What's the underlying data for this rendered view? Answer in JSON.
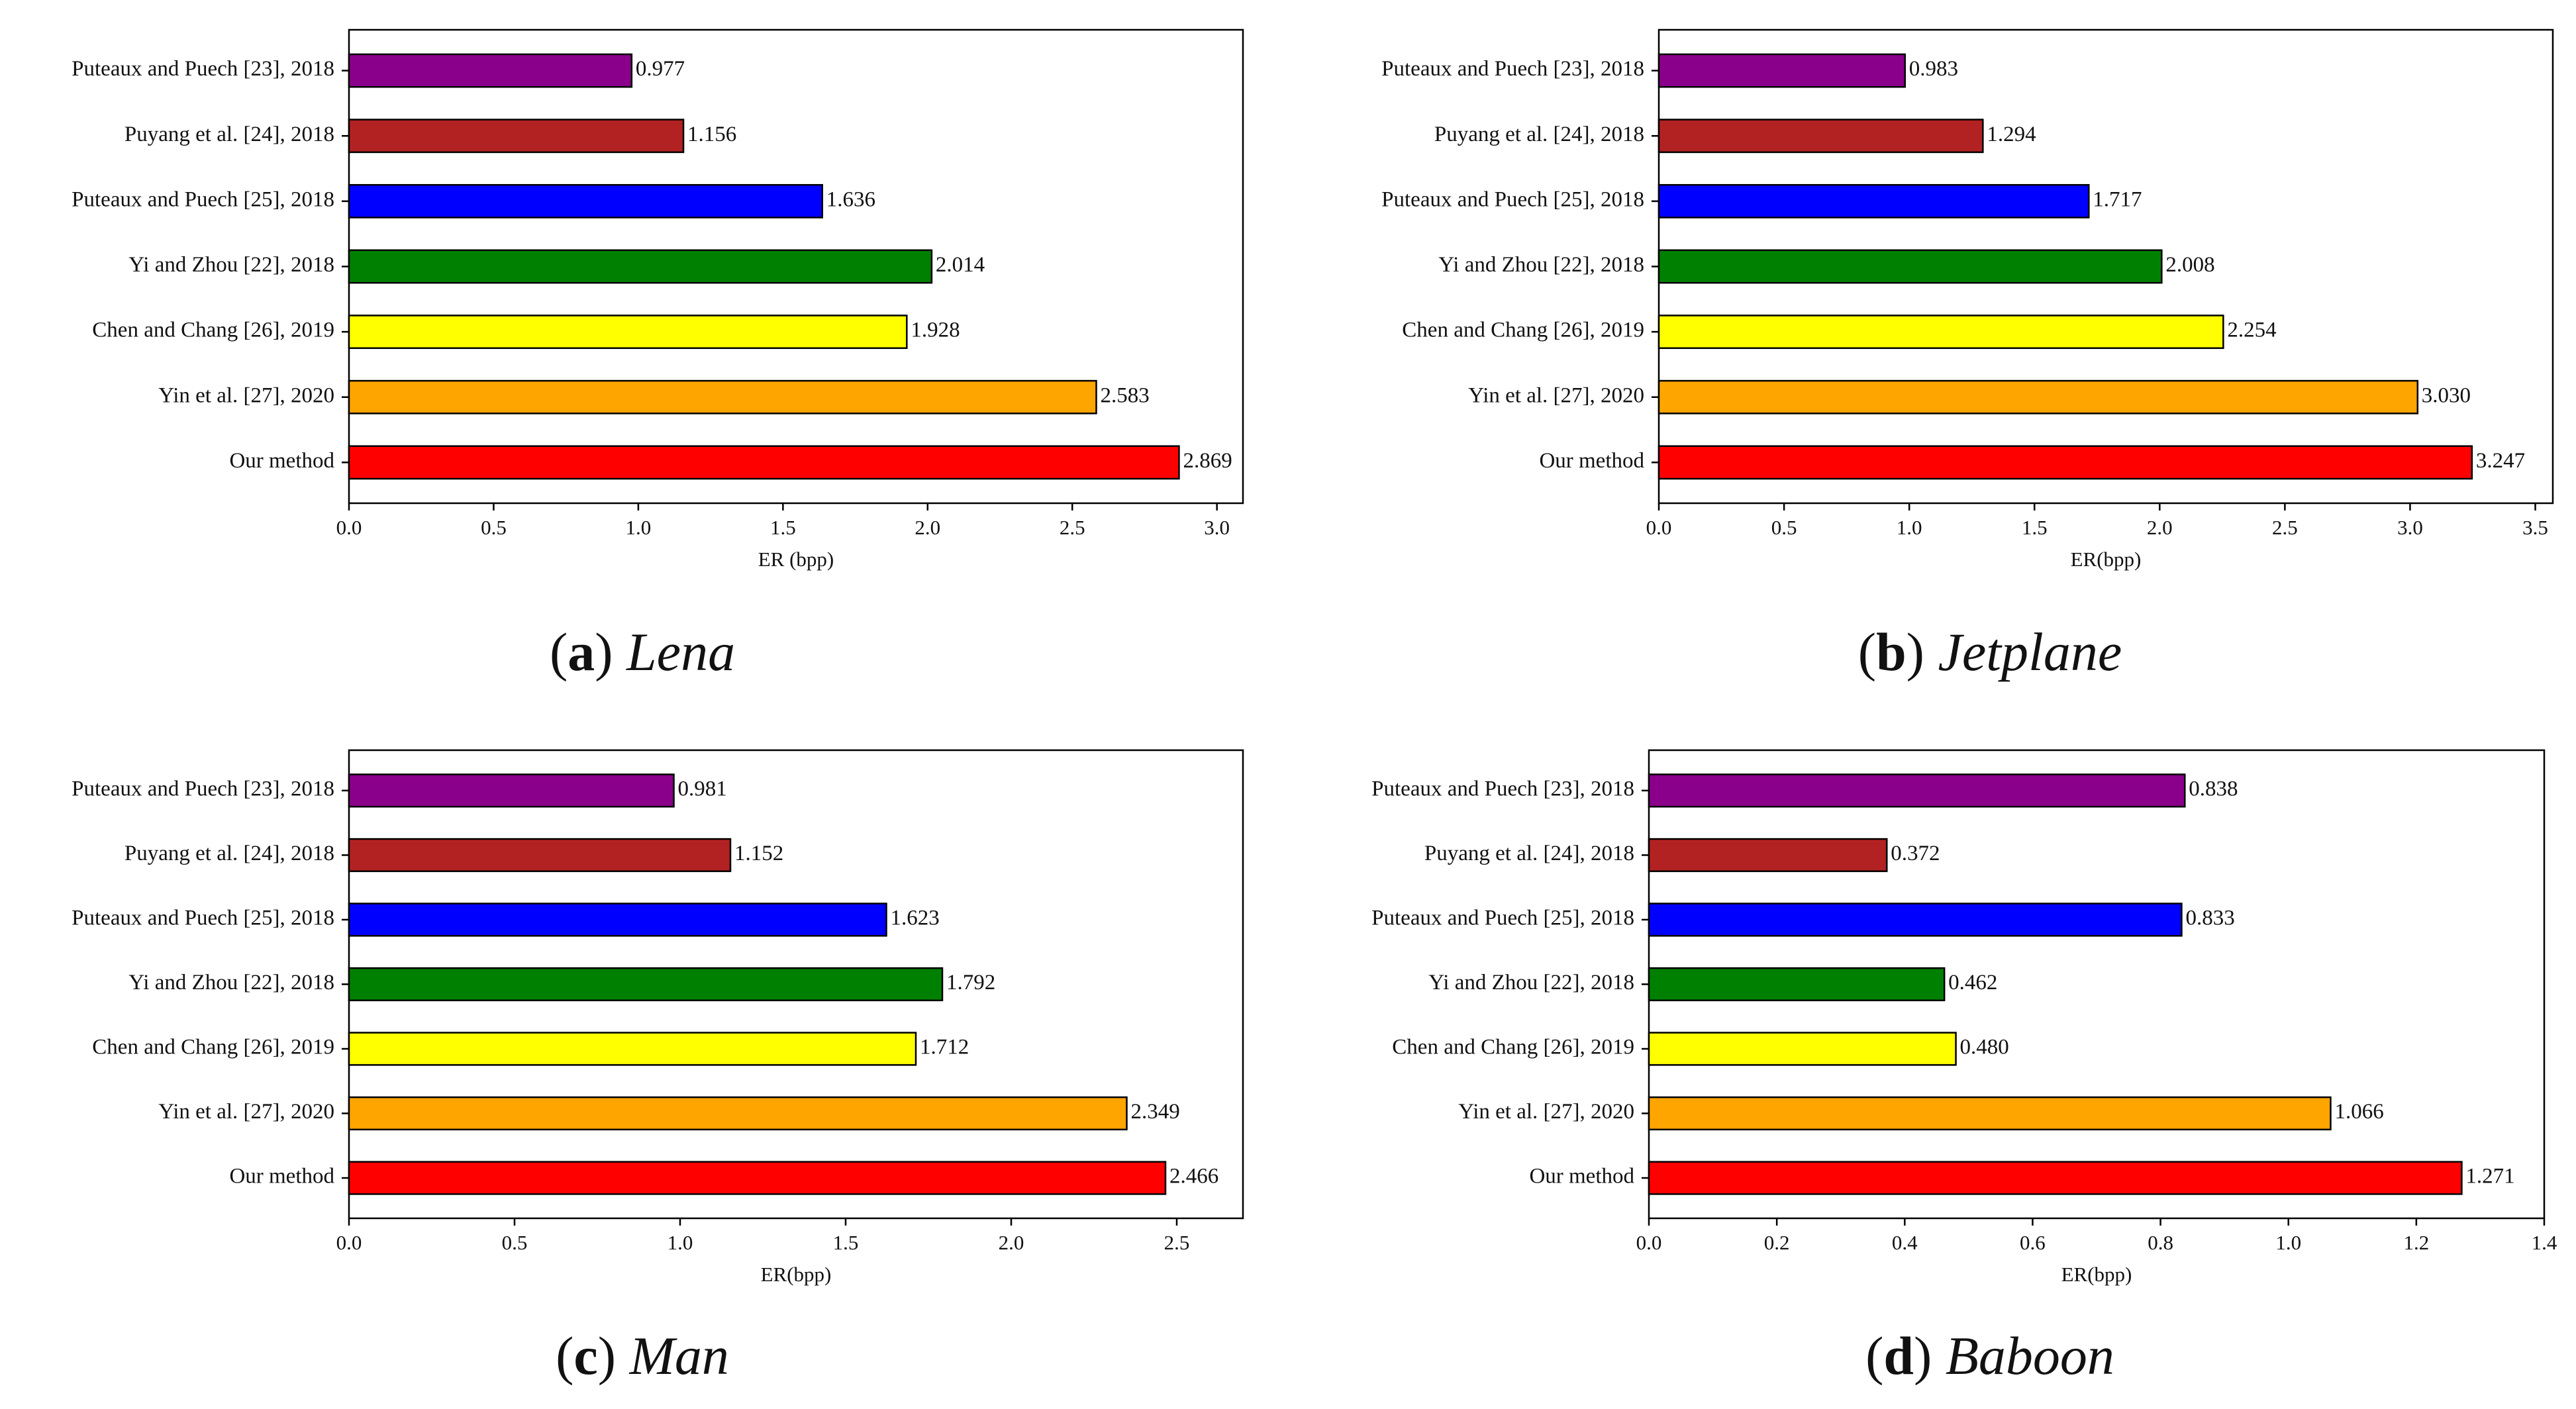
{
  "figure": {
    "panels": [
      "lena",
      "jetplane",
      "man",
      "baboon"
    ]
  },
  "chart_data": [
    {
      "type": "bar",
      "orientation": "horizontal",
      "caption_letter": "a",
      "caption_name": "Lena",
      "categories": [
        "Puteaux and Puech [23], 2018",
        "Puyang et al. [24], 2018",
        "Puteaux and Puech [25], 2018",
        "Yi and Zhou [22], 2018",
        "Chen and Chang [26], 2019",
        "Yin et al. [27], 2020",
        "Our method"
      ],
      "values": [
        0.977,
        1.156,
        1.636,
        2.014,
        1.928,
        2.583,
        2.869
      ],
      "value_labels": [
        "0.977",
        "1.156",
        "1.636",
        "2.014",
        "1.928",
        "2.583",
        "2.869"
      ],
      "colors": [
        "#8b008b",
        "#b22222",
        "#0000ff",
        "#008000",
        "#ffff00",
        "#ffa500",
        "#ff0000"
      ],
      "xlabel": "ER (bpp)",
      "xlim": [
        0,
        3.09
      ],
      "xticks": [
        0,
        0.5,
        1.0,
        1.5,
        2.0,
        2.5,
        3.0
      ],
      "xtick_labels": [
        "0.0",
        "0.5",
        "1.0",
        "1.5",
        "2.0",
        "2.5",
        "3.0"
      ],
      "grid": false,
      "legend": "none"
    },
    {
      "type": "bar",
      "orientation": "horizontal",
      "caption_letter": "b",
      "caption_name": "Jetplane",
      "categories": [
        "Puteaux and Puech [23], 2018",
        "Puyang et al. [24], 2018",
        "Puteaux and Puech [25], 2018",
        "Yi and Zhou [22], 2018",
        "Chen and Chang [26], 2019",
        "Yin et al. [27], 2020",
        "Our method"
      ],
      "values": [
        0.983,
        1.294,
        1.717,
        2.008,
        2.254,
        3.03,
        3.247
      ],
      "value_labels": [
        "0.983",
        "1.294",
        "1.717",
        "2.008",
        "2.254",
        "3.030",
        "3.247"
      ],
      "colors": [
        "#8b008b",
        "#b22222",
        "#0000ff",
        "#008000",
        "#ffff00",
        "#ffa500",
        "#ff0000"
      ],
      "xlabel": "ER(bpp)",
      "xlim": [
        0,
        3.57
      ],
      "xticks": [
        0,
        0.5,
        1.0,
        1.5,
        2.0,
        2.5,
        3.0,
        3.5
      ],
      "xtick_labels": [
        "0.0",
        "0.5",
        "1.0",
        "1.5",
        "2.0",
        "2.5",
        "3.0",
        "3.5"
      ],
      "grid": false,
      "legend": "none"
    },
    {
      "type": "bar",
      "orientation": "horizontal",
      "caption_letter": "c",
      "caption_name": "Man",
      "categories": [
        "Puteaux and Puech [23], 2018",
        "Puyang et al. [24], 2018",
        "Puteaux and Puech [25], 2018",
        "Yi and Zhou [22], 2018",
        "Chen and Chang [26], 2019",
        "Yin et al. [27], 2020",
        "Our method"
      ],
      "values": [
        0.981,
        1.152,
        1.623,
        1.792,
        1.712,
        2.349,
        2.466
      ],
      "value_labels": [
        "0.981",
        "1.152",
        "1.623",
        "1.792",
        "1.712",
        "2.349",
        "2.466"
      ],
      "colors": [
        "#8b008b",
        "#b22222",
        "#0000ff",
        "#008000",
        "#ffff00",
        "#ffa500",
        "#ff0000"
      ],
      "xlabel": "ER(bpp)",
      "xlim": [
        0,
        2.7
      ],
      "xticks": [
        0,
        0.5,
        1.0,
        1.5,
        2.0,
        2.5
      ],
      "xtick_labels": [
        "0.0",
        "0.5",
        "1.0",
        "1.5",
        "2.0",
        "2.5"
      ],
      "grid": false,
      "legend": "none"
    },
    {
      "type": "bar",
      "orientation": "horizontal",
      "caption_letter": "d",
      "caption_name": "Baboon",
      "categories": [
        "Puteaux and Puech [23], 2018",
        "Puyang et al. [24], 2018",
        "Puteaux and Puech [25], 2018",
        "Yi and Zhou [22], 2018",
        "Chen and Chang [26], 2019",
        "Yin et al. [27], 2020",
        "Our method"
      ],
      "values": [
        0.838,
        0.372,
        0.833,
        0.462,
        0.48,
        1.066,
        1.271
      ],
      "value_labels": [
        "0.838",
        "0.372",
        "0.833",
        "0.462",
        "0.480",
        "1.066",
        "1.271"
      ],
      "colors": [
        "#8b008b",
        "#b22222",
        "#0000ff",
        "#008000",
        "#ffff00",
        "#ffa500",
        "#ff0000"
      ],
      "xlabel": "ER(bpp)",
      "xlim": [
        0,
        1.4
      ],
      "xticks": [
        0,
        0.2,
        0.4,
        0.6,
        0.8,
        1.0,
        1.2,
        1.4
      ],
      "xtick_labels": [
        "0.0",
        "0.2",
        "0.4",
        "0.6",
        "0.8",
        "1.0",
        "1.2",
        "1.4"
      ],
      "grid": false,
      "legend": "none"
    }
  ]
}
